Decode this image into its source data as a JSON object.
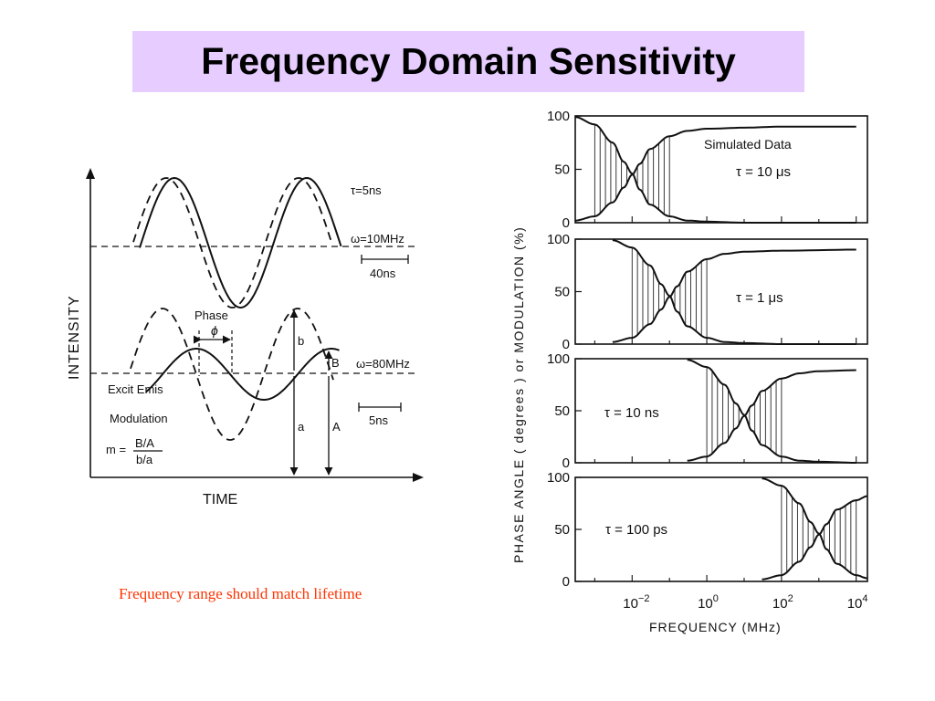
{
  "title": "Frequency Domain Sensitivity",
  "caption": "Frequency range should match lifetime",
  "left_diagram": {
    "y_axis_label": "INTENSITY",
    "x_axis_label": "TIME",
    "tau_label": "τ=5ns",
    "omega1_label": "ω=10MHz",
    "omega2_label": "ω=80MHz",
    "scale1_label": "40ns",
    "scale2_label": "5ns",
    "phase_label": "Phase",
    "phi_label": "ϕ",
    "b_label": "b",
    "B_label": "B",
    "a_label": "a",
    "A_label": "A",
    "excit_emis_label": "Excit Emis",
    "modulation_label": "Modulation",
    "m_prefix": "m =",
    "m_numerator": "B/A",
    "m_denominator": "b/a"
  },
  "right_chart": {
    "y_axis_label": "PHASE ANGLE ( degrees ) or MODULATION (%)",
    "x_axis_label": "FREQUENCY (MHz)",
    "x_tick_labels": [
      {
        "base": "10",
        "exp": "−2"
      },
      {
        "base": "10",
        "exp": "0"
      },
      {
        "base": "10",
        "exp": "2"
      },
      {
        "base": "10",
        "exp": "4"
      }
    ],
    "simulated_label": "Simulated  Data",
    "panels": [
      {
        "tau_label": "τ = 10 μs",
        "y_ticks": [
          "100",
          "50",
          "0"
        ]
      },
      {
        "tau_label": "τ = 1 μs",
        "y_ticks": [
          "100",
          "50",
          "0"
        ]
      },
      {
        "tau_label": "τ = 10 ns",
        "y_ticks": [
          "100",
          "50",
          "0"
        ]
      },
      {
        "tau_label": "τ = 100 ps",
        "y_ticks": [
          "100",
          "50",
          "0"
        ]
      }
    ]
  },
  "chart_data": {
    "type": "line",
    "xlabel": "FREQUENCY (MHz)",
    "ylabel": "PHASE ANGLE ( degrees ) or MODULATION (%)",
    "x_scale": "log",
    "xlim": [
      0.0003,
      20000
    ],
    "ylim": [
      0,
      100
    ],
    "x_ticks": [
      0.01,
      1,
      100,
      10000
    ],
    "y_ticks": [
      0,
      50,
      100
    ],
    "grid": false,
    "panels": [
      {
        "tau_label": "τ = 10 μs",
        "series": [
          {
            "x": [
              0.0003,
              0.001,
              0.003,
              0.006,
              0.01,
              0.016,
              0.03,
              0.1,
              0.3,
              1,
              10,
              100,
              10000
            ],
            "values": [
              99,
              92,
              75,
              57,
              46,
              31,
              17,
              6,
              2,
              1,
              0,
              0,
              0
            ]
          },
          {
            "x": [
              0.0003,
              0.001,
              0.003,
              0.006,
              0.01,
              0.016,
              0.03,
              0.1,
              0.3,
              1,
              10,
              100,
              10000
            ],
            "values": [
              2,
              6,
              19,
              33,
              45,
              55,
              69,
              81,
              86,
              88,
              89,
              90,
              90
            ]
          }
        ]
      },
      {
        "tau_label": "τ = 1 μs",
        "series": [
          {
            "x": [
              0.003,
              0.01,
              0.03,
              0.06,
              0.1,
              0.16,
              0.3,
              1,
              3,
              10,
              100,
              10000
            ],
            "values": [
              99,
              92,
              75,
              57,
              46,
              31,
              17,
              6,
              2,
              1,
              0,
              0
            ]
          },
          {
            "x": [
              0.003,
              0.01,
              0.03,
              0.06,
              0.1,
              0.16,
              0.3,
              1,
              3,
              10,
              100,
              10000
            ],
            "values": [
              2,
              6,
              19,
              33,
              45,
              55,
              69,
              81,
              86,
              88,
              89,
              90
            ]
          }
        ]
      },
      {
        "tau_label": "τ = 10 ns",
        "series": [
          {
            "x": [
              0.3,
              1,
              3,
              6,
              10,
              16,
              30,
              100,
              300,
              1000,
              10000
            ],
            "values": [
              99,
              92,
              75,
              57,
              46,
              31,
              17,
              6,
              2,
              1,
              0
            ]
          },
          {
            "x": [
              0.3,
              1,
              3,
              6,
              10,
              16,
              30,
              100,
              300,
              1000,
              10000
            ],
            "values": [
              2,
              6,
              19,
              33,
              45,
              55,
              69,
              81,
              86,
              88,
              89
            ]
          }
        ]
      },
      {
        "tau_label": "τ = 100 ps",
        "series": [
          {
            "x": [
              30,
              100,
              300,
              600,
              1000,
              1600,
              3000,
              10000,
              20000
            ],
            "values": [
              99,
              92,
              75,
              57,
              46,
              31,
              17,
              6,
              3
            ]
          },
          {
            "x": [
              30,
              100,
              300,
              600,
              1000,
              1600,
              3000,
              10000,
              20000
            ],
            "values": [
              2,
              6,
              19,
              33,
              45,
              55,
              69,
              78,
              82
            ]
          }
        ]
      }
    ]
  }
}
